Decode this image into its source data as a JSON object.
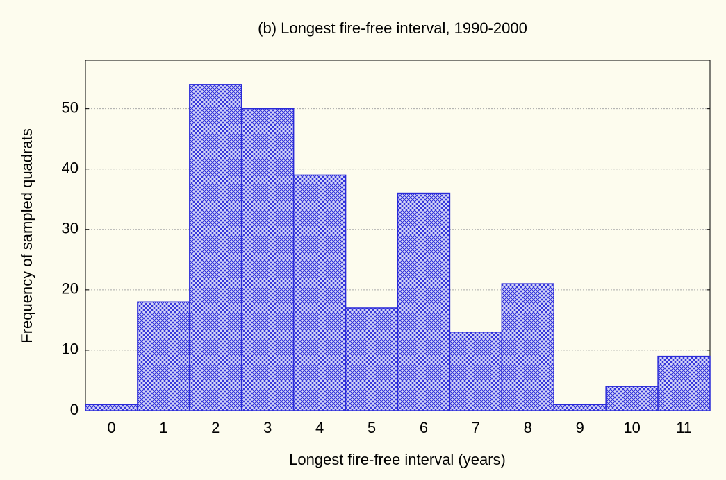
{
  "chart_data": {
    "type": "bar",
    "title": "(b) Longest fire-free interval, 1990-2000",
    "x_label": "Longest fire-free interval (years)",
    "y_label": "Frequency of sampled quadrats",
    "categories": [
      "0",
      "1",
      "2",
      "3",
      "4",
      "5",
      "6",
      "7",
      "8",
      "9",
      "10",
      "11"
    ],
    "values": [
      1,
      18,
      54,
      50,
      39,
      17,
      36,
      13,
      21,
      1,
      4,
      9
    ],
    "color": "#2a2ad8",
    "ylim": [
      0,
      58
    ],
    "yticks": [
      0,
      10,
      20,
      30,
      40,
      50
    ],
    "grid": true
  }
}
